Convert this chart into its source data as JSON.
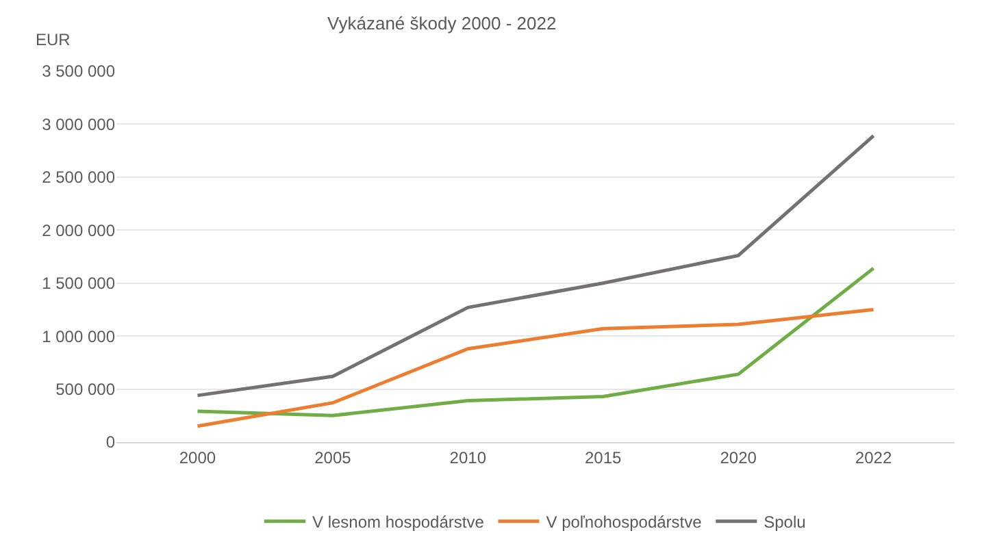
{
  "chart_data": {
    "type": "line",
    "title": "Vykázané škody 2000 - 2022",
    "ylabel": "EUR",
    "categories": [
      "2000",
      "2005",
      "2010",
      "2015",
      "2020",
      "2022"
    ],
    "series": [
      {
        "name": "V lesnom hospodárstve",
        "color": "#70ad47",
        "values": [
          290000,
          250000,
          390000,
          430000,
          640000,
          1640000
        ]
      },
      {
        "name": "V poľnohospodárstve",
        "color": "#ed7d31",
        "values": [
          150000,
          370000,
          880000,
          1070000,
          1110000,
          1250000
        ]
      },
      {
        "name": "Spolu",
        "color": "#767171",
        "values": [
          440000,
          620000,
          1270000,
          1500000,
          1760000,
          2890000
        ]
      }
    ],
    "ylim": [
      0,
      3500000
    ],
    "yticks": [
      {
        "value": 0,
        "label": "0"
      },
      {
        "value": 500000,
        "label": "500 000"
      },
      {
        "value": 1000000,
        "label": "1 000 000"
      },
      {
        "value": 1500000,
        "label": "1 500 000"
      },
      {
        "value": 2000000,
        "label": "2 000 000"
      },
      {
        "value": 2500000,
        "label": "2 500 000"
      },
      {
        "value": 3000000,
        "label": "3 000 000"
      },
      {
        "value": 3500000,
        "label": "3 500 000"
      }
    ],
    "grid": "y",
    "legend": "bottom",
    "marker": "none",
    "line_style": "solid"
  }
}
